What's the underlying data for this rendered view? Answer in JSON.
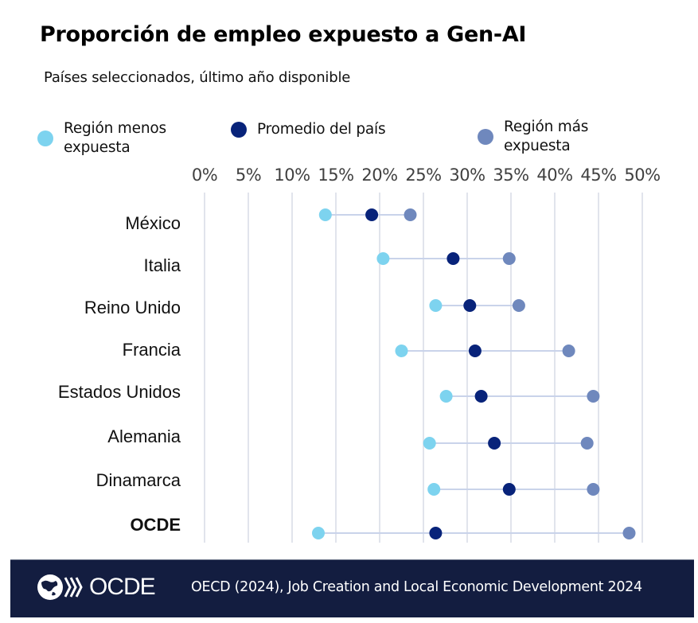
{
  "header": {
    "title": "Proporción de empleo expuesto a Gen-AI",
    "subtitle": "Países seleccionados, último año disponible"
  },
  "legend": [
    {
      "key": "low",
      "label_line1": "Región menos",
      "label_line2": "expuesta",
      "color": "#7dd3ef"
    },
    {
      "key": "avg",
      "label_line1": "Promedio del país",
      "label_line2": "",
      "color": "#08237a"
    },
    {
      "key": "high",
      "label_line1": "Región más",
      "label_line2": "expuesta",
      "color": "#6f88bd"
    }
  ],
  "chart_data": {
    "type": "dumbbell",
    "title": "Proporción de empleo expuesto a Gen-AI",
    "subtitle": "Países seleccionados, último año disponible",
    "x_axis": {
      "min": 0,
      "max": 50,
      "unit": "%",
      "position": "top",
      "ticks": [
        "0%",
        "5%",
        "10%",
        "15%",
        "20%",
        "25%",
        "30%",
        "35%",
        "40%",
        "45%",
        "50%"
      ],
      "grid": true
    },
    "legend_position": "top",
    "categories": [
      "México",
      "Italia",
      "Reino Unido",
      "Francia",
      "Estados Unidos",
      "Alemania",
      "Dinamarca",
      "OCDE"
    ],
    "bold_categories": [
      "OCDE"
    ],
    "series": [
      {
        "name": "Región menos expuesta",
        "color": "#7dd3ef",
        "values": [
          13.8,
          20.4,
          26.4,
          22.5,
          27.6,
          25.7,
          26.2,
          13.0
        ]
      },
      {
        "name": "Promedio del país",
        "color": "#08237a",
        "values": [
          19.1,
          28.4,
          30.3,
          30.9,
          31.6,
          33.1,
          34.8,
          26.4
        ]
      },
      {
        "name": "Región más expuesta",
        "color": "#6f88bd",
        "values": [
          23.5,
          34.8,
          35.9,
          41.6,
          44.4,
          43.7,
          44.4,
          48.5
        ]
      }
    ],
    "connector_color": "#c9d3ea",
    "grid_color": "#d7dce6"
  },
  "footer": {
    "logo_text": "OCDE",
    "source": "OECD (2024), Job Creation and Local Economic Development 2024",
    "background": "#131d40"
  }
}
